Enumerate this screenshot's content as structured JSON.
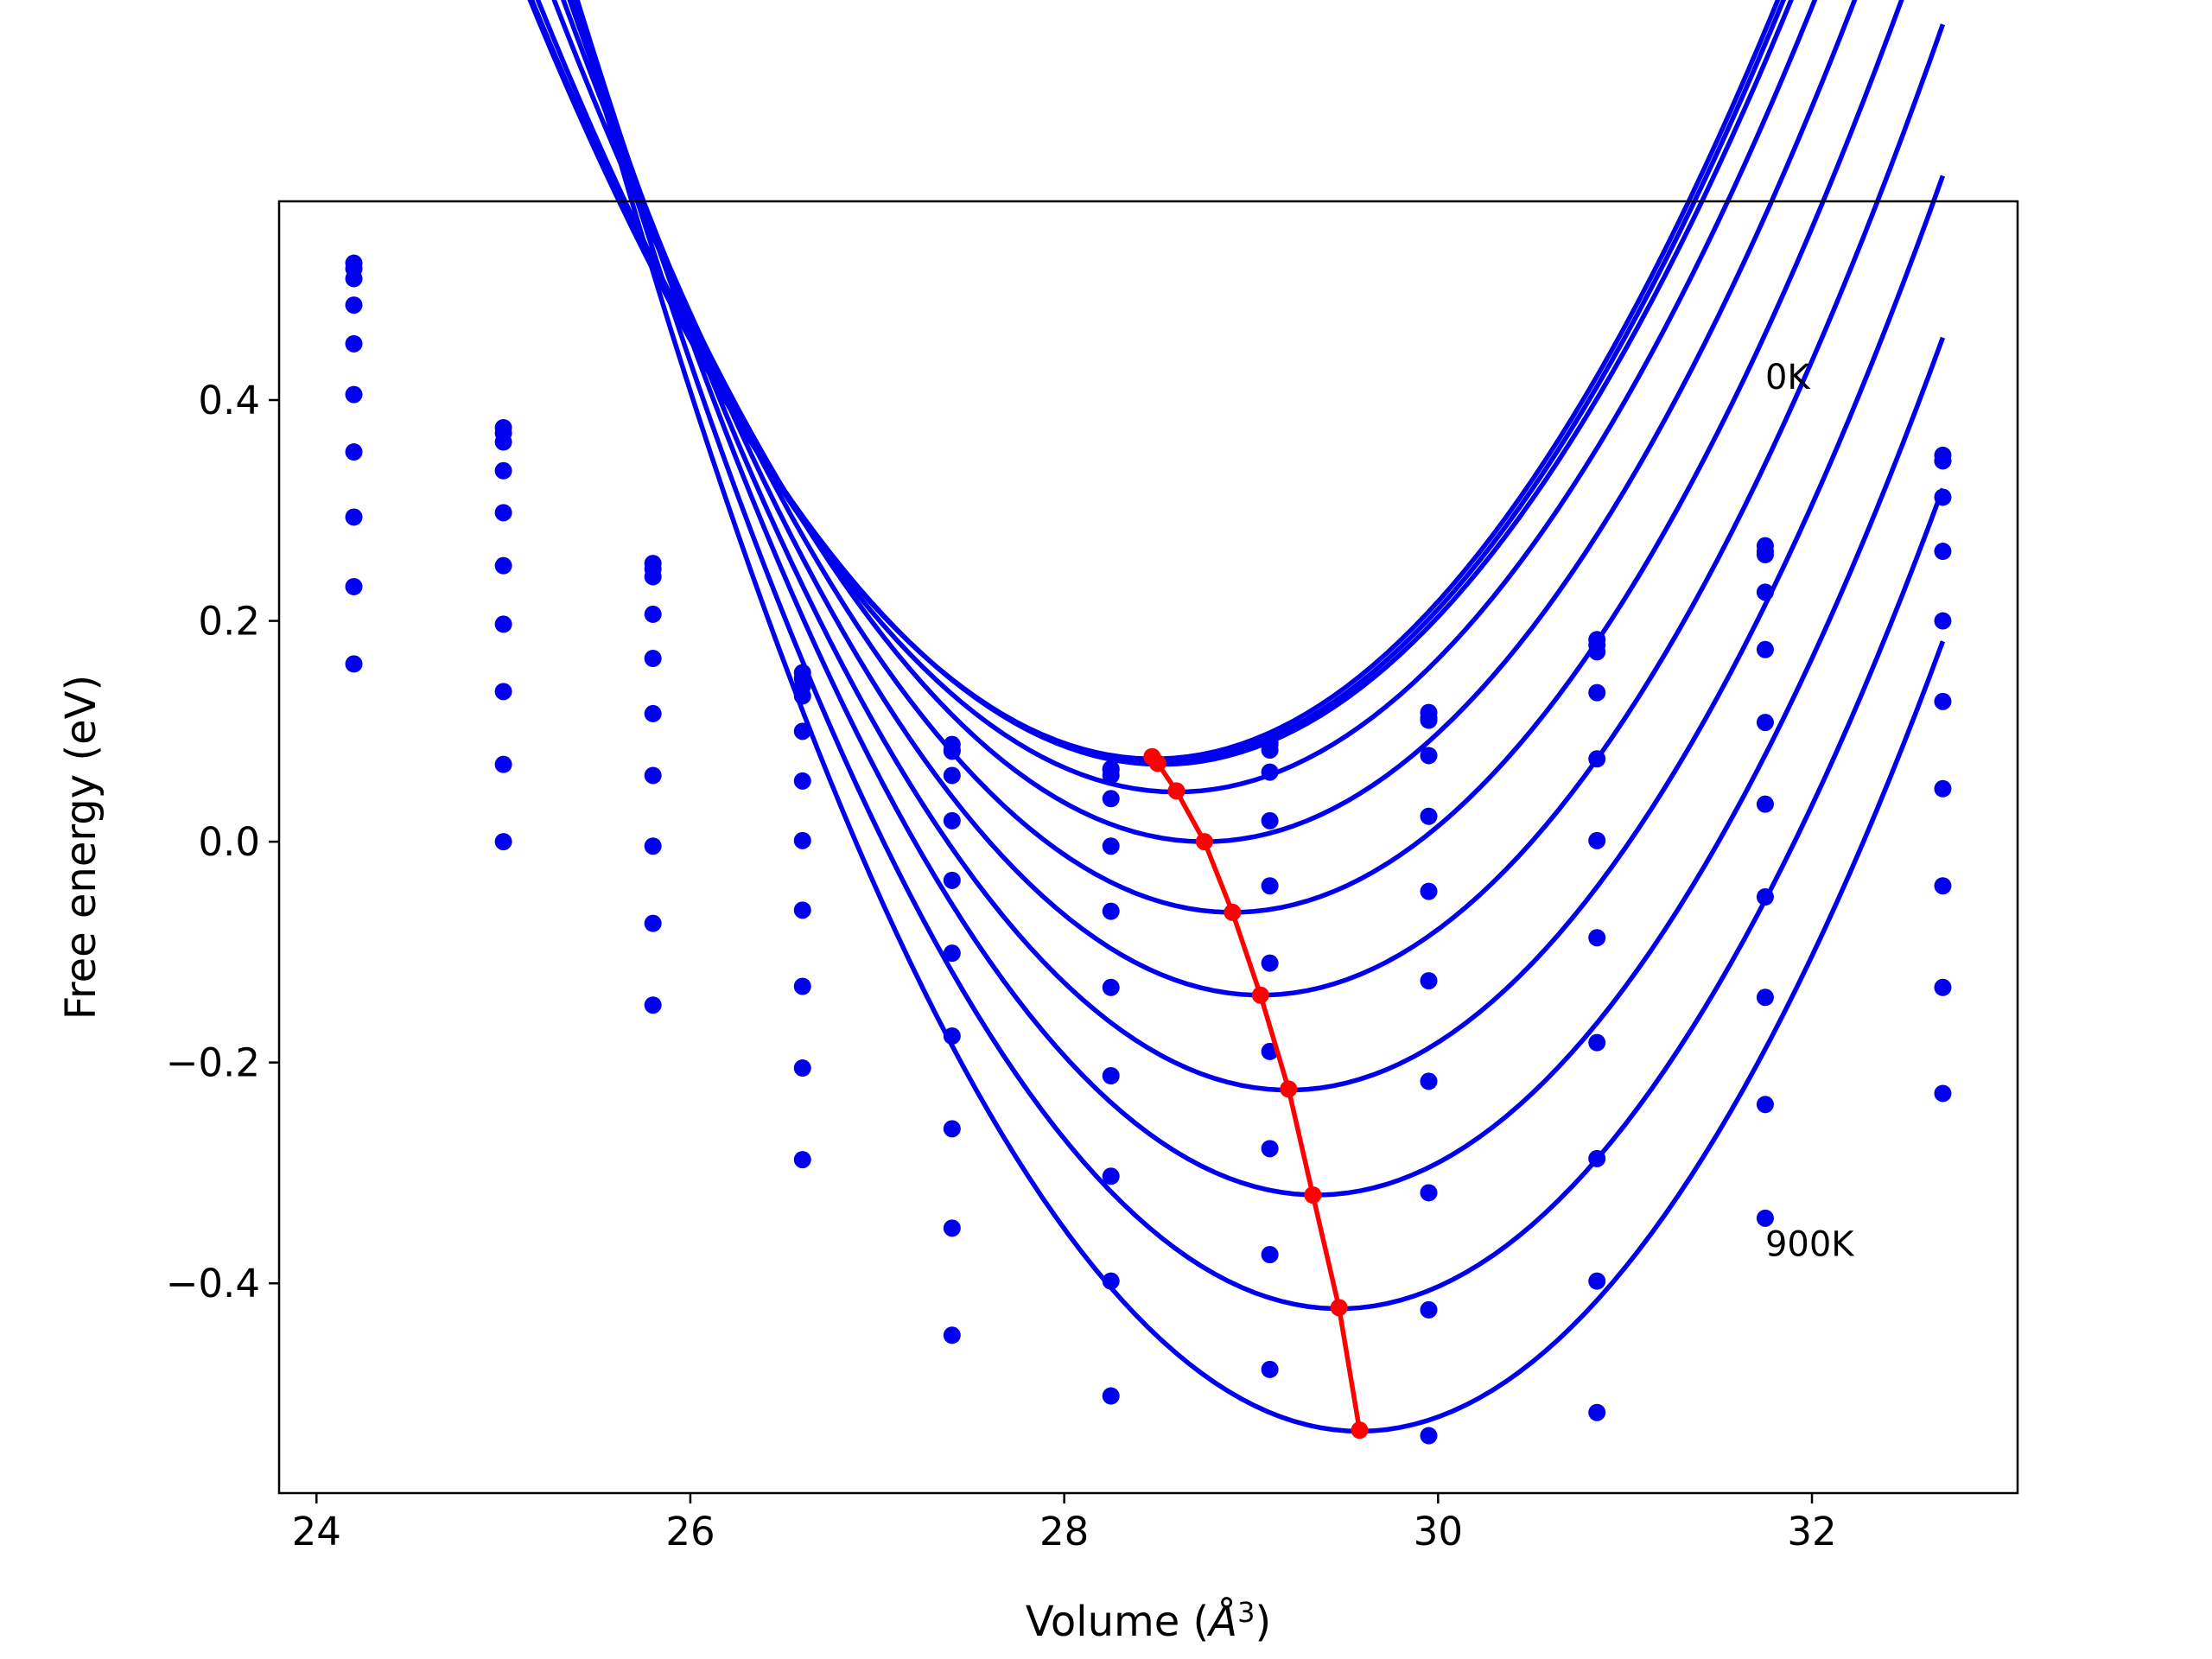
{
  "chart_data": {
    "type": "line",
    "title": "",
    "xlabel": "Volume (",
    "xlabel_symbol": "Å",
    "xlabel_exponent": "3",
    "xlabel_close": ")",
    "ylabel": "Free energy (eV)",
    "xlim": [
      23.8,
      33.1
    ],
    "ylim": [
      -0.59,
      0.58
    ],
    "xticks": [
      24,
      26,
      28,
      30,
      32
    ],
    "xtick_labels": [
      "24",
      "26",
      "28",
      "30",
      "32"
    ],
    "yticks": [
      -0.4,
      -0.2,
      0.0,
      0.2,
      0.4
    ],
    "ytick_labels": [
      "−0.4",
      "−0.2",
      "0.0",
      "0.2",
      "0.4"
    ],
    "grid": false,
    "colors": {
      "curves": "#0000ee",
      "points": "#0000ee",
      "minimum_path": "#ff0000"
    },
    "annotations": [
      {
        "text": "0K",
        "x": 31.75,
        "y": 0.41
      },
      {
        "text": "900K",
        "x": 31.75,
        "y": -0.375
      }
    ],
    "volumes": [
      24.2,
      25.0,
      25.8,
      26.6,
      27.4,
      28.25,
      29.1,
      29.95,
      30.85,
      31.75,
      32.7
    ],
    "curve_x_range": [
      24.2,
      32.7
    ],
    "series": [
      {
        "minimum": {
          "x": 28.48,
          "y": 0.075
        },
        "a": 0.0617,
        "points": [
          0.524,
          0.375,
          0.252,
          0.153,
          0.088,
          0.065,
          0.088,
          0.117,
          0.183,
          0.268,
          0.35
        ]
      },
      {
        "minimum": {
          "x": 28.5,
          "y": 0.072
        },
        "a": 0.0616,
        "points": [
          0.519,
          0.37,
          0.247,
          0.148,
          0.083,
          0.06,
          0.083,
          0.112,
          0.178,
          0.263,
          0.345
        ]
      },
      {
        "minimum": {
          "x": 28.52,
          "y": 0.07
        },
        "a": 0.061,
        "points": [
          0.51,
          0.362,
          0.24,
          0.141,
          0.082,
          0.066,
          0.09,
          0.11,
          0.172,
          0.26,
          0.345
        ]
      },
      {
        "minimum": {
          "x": 28.6,
          "y": 0.045
        },
        "a": 0.0615,
        "points": [
          0.486,
          0.336,
          0.206,
          0.132,
          0.06,
          0.039,
          0.063,
          0.078,
          0.135,
          0.226,
          0.312
        ]
      },
      {
        "minimum": {
          "x": 28.75,
          "y": 0.0
        },
        "a": 0.063,
        "points": [
          0.451,
          0.298,
          0.166,
          0.1,
          0.019,
          -0.004,
          0.019,
          0.023,
          0.075,
          0.174,
          0.263
        ]
      },
      {
        "minimum": {
          "x": 28.9,
          "y": -0.064
        },
        "a": 0.0645,
        "points": [
          0.405,
          0.25,
          0.116,
          0.055,
          -0.035,
          -0.063,
          -0.04,
          -0.045,
          0.001,
          0.108,
          0.2
        ]
      },
      {
        "minimum": {
          "x": 29.05,
          "y": -0.139
        },
        "a": 0.066,
        "points": [
          0.353,
          0.197,
          0.06,
          0.001,
          -0.101,
          -0.132,
          -0.11,
          -0.126,
          -0.087,
          0.034,
          0.127
        ]
      },
      {
        "minimum": {
          "x": 29.2,
          "y": -0.225
        },
        "a": 0.0676,
        "points": [
          0.294,
          0.136,
          -0.004,
          -0.062,
          -0.176,
          -0.212,
          -0.19,
          -0.217,
          -0.182,
          -0.05,
          0.048
        ]
      },
      {
        "minimum": {
          "x": 29.35,
          "y": -0.32
        },
        "a": 0.0692,
        "points": [
          0.231,
          0.07,
          -0.074,
          -0.131,
          -0.26,
          -0.303,
          -0.278,
          -0.318,
          -0.287,
          -0.141,
          -0.04
        ]
      },
      {
        "minimum": {
          "x": 29.47,
          "y": -0.423
        },
        "a": 0.0712,
        "points": [
          0.161,
          0.0,
          -0.148,
          -0.205,
          -0.35,
          -0.398,
          -0.374,
          -0.424,
          -0.398,
          -0.238,
          -0.132
        ]
      },
      {
        "minimum": {
          "x": 29.58,
          "y": -0.534
        },
        "a": 0.0735,
        "points": [
          null,
          null,
          null,
          -0.288,
          -0.447,
          -0.502,
          -0.478,
          -0.538,
          -0.517,
          -0.341,
          -0.228
        ]
      }
    ],
    "minimum_path": {
      "x": [
        28.47,
        28.5,
        28.6,
        28.75,
        28.9,
        29.05,
        29.2,
        29.33,
        29.47,
        29.58
      ],
      "y": [
        0.077,
        0.071,
        0.046,
        0.0,
        -0.064,
        -0.139,
        -0.224,
        -0.32,
        -0.422,
        -0.533
      ]
    }
  }
}
